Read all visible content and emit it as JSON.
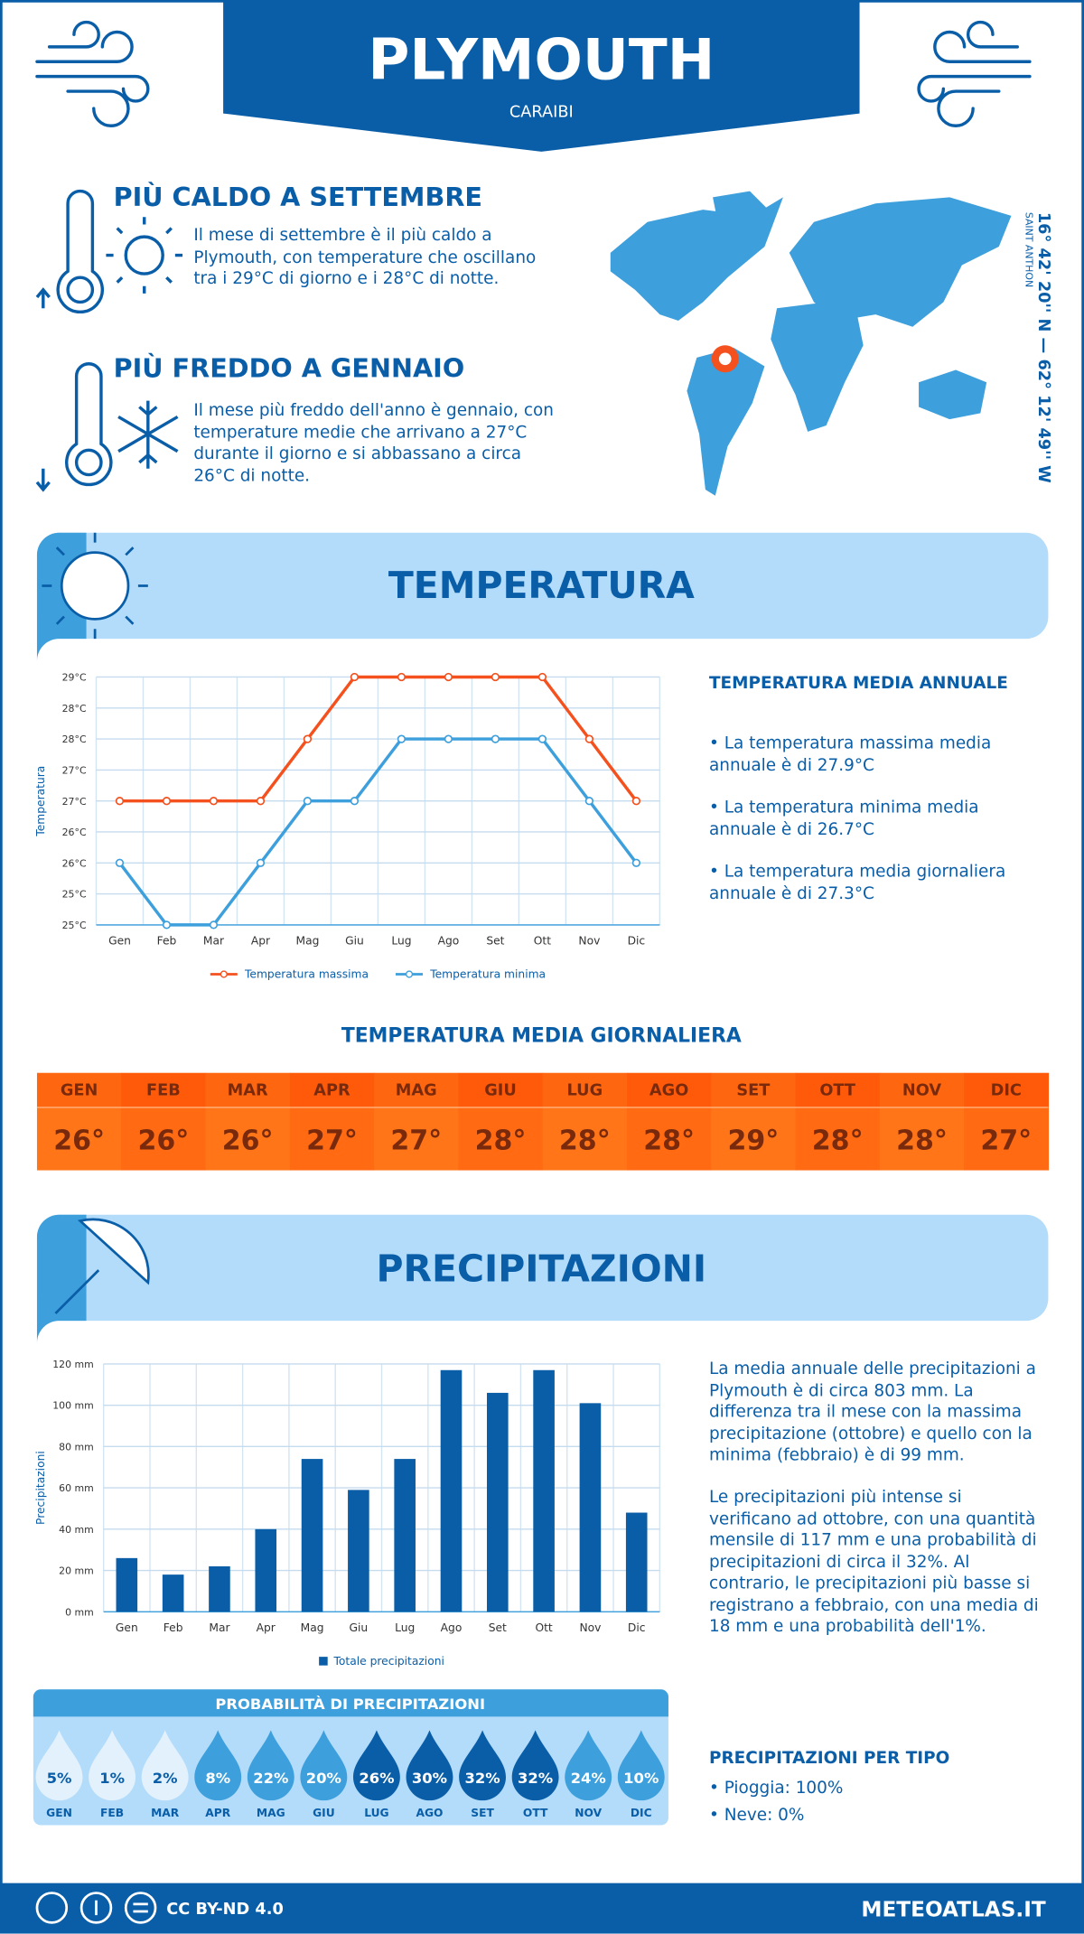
{
  "header": {
    "title": "PLYMOUTH",
    "subtitle": "CARAIBI"
  },
  "highlights": [
    {
      "title": "PIÙ CALDO A SETTEMBRE",
      "text": "Il mese di settembre è il più caldo a Plymouth, con temperature che oscillano tra i 29°C di giorno e i 28°C di notte."
    },
    {
      "title": "PIÙ FREDDO A GENNAIO",
      "text": "Il mese più freddo dell'anno è gennaio, con temperature medie che arrivano a 27°C durante il giorno e si abbassano a circa 26°C di notte."
    }
  ],
  "map": {
    "coordinates": "16° 42' 20'' N — 62° 12' 49'' W",
    "place": "SAINT ANTHON"
  },
  "temperature_section": {
    "title": "TEMPERATURA",
    "annual_title": "TEMPERATURA MEDIA ANNUALE",
    "annual_items": [
      "• La temperatura massima media annuale è di 27.9°C",
      "• La temperatura minima media annuale è di 26.7°C",
      "• La temperatura media giornaliera annuale è di 27.3°C"
    ],
    "daily_title": "TEMPERATURA MEDIA GIORNALIERA",
    "daily": {
      "months": [
        "GEN",
        "FEB",
        "MAR",
        "APR",
        "MAG",
        "GIU",
        "LUG",
        "AGO",
        "SET",
        "OTT",
        "NOV",
        "DIC"
      ],
      "values": [
        "26°",
        "26°",
        "26°",
        "27°",
        "27°",
        "28°",
        "28°",
        "28°",
        "29°",
        "28°",
        "28°",
        "27°"
      ]
    }
  },
  "chart_data": [
    {
      "type": "line",
      "y_label": "Temperatura",
      "categories": [
        "Gen",
        "Feb",
        "Mar",
        "Apr",
        "Mag",
        "Giu",
        "Lug",
        "Ago",
        "Set",
        "Ott",
        "Nov",
        "Dic"
      ],
      "series": [
        {
          "name": "Temperatura massima",
          "color": "#f4511e",
          "values": [
            27,
            27,
            27,
            27,
            28,
            29,
            29,
            29,
            29,
            29,
            28,
            27
          ]
        },
        {
          "name": "Temperatura minima",
          "color": "#3d9fdc",
          "values": [
            26,
            25,
            25,
            26,
            27,
            27,
            28,
            28,
            28,
            28,
            27,
            26
          ]
        }
      ],
      "ylim": [
        25,
        29
      ],
      "yticks": [
        {
          "value": 25,
          "label": "25°C"
        },
        {
          "value": 25.5,
          "label": "25°C"
        },
        {
          "value": 26,
          "label": "26°C"
        },
        {
          "value": 26.5,
          "label": "26°C"
        },
        {
          "value": 27,
          "label": "27°C"
        },
        {
          "value": 27.5,
          "label": "27°C"
        },
        {
          "value": 28,
          "label": "28°C"
        },
        {
          "value": 28.5,
          "label": "28°C"
        },
        {
          "value": 29,
          "label": "29°C"
        }
      ],
      "grid": true
    },
    {
      "type": "bar",
      "y_label": "Precipitazioni",
      "categories": [
        "Gen",
        "Feb",
        "Mar",
        "Apr",
        "Mag",
        "Giu",
        "Lug",
        "Ago",
        "Set",
        "Ott",
        "Nov",
        "Dic"
      ],
      "series": [
        {
          "name": "Totale precipitazioni",
          "color": "#0a5ea8",
          "values": [
            26,
            18,
            22,
            40,
            74,
            59,
            74,
            117,
            106,
            117,
            101,
            48
          ]
        }
      ],
      "ylim": [
        0,
        120
      ],
      "yticks": [
        {
          "value": 0,
          "label": "0 mm"
        },
        {
          "value": 20,
          "label": "20 mm"
        },
        {
          "value": 40,
          "label": "40 mm"
        },
        {
          "value": 60,
          "label": "60 mm"
        },
        {
          "value": 80,
          "label": "80 mm"
        },
        {
          "value": 100,
          "label": "100 mm"
        },
        {
          "value": 120,
          "label": "120 mm"
        }
      ],
      "grid": true
    }
  ],
  "precipitation_section": {
    "title": "PRECIPITAZIONI",
    "paragraphs": [
      "La media annuale delle precipitazioni a Plymouth è di circa 803 mm. La differenza tra il mese con la massima precipitazione (ottobre) e quello con la minima (febbraio) è di 99 mm.",
      "Le precipitazioni più intense si verificano ad ottobre, con una quantità mensile di 117 mm e una probabilità di precipitazioni di circa il 32%. Al contrario, le precipitazioni più basse si registrano a febbraio, con una media di 18 mm e una probabilità dell'1%."
    ],
    "probability_title": "PROBABILITÀ DI PRECIPITAZIONI",
    "probability": {
      "months": [
        "GEN",
        "FEB",
        "MAR",
        "APR",
        "MAG",
        "GIU",
        "LUG",
        "AGO",
        "SET",
        "OTT",
        "NOV",
        "DIC"
      ],
      "values": [
        "5%",
        "1%",
        "2%",
        "8%",
        "22%",
        "20%",
        "26%",
        "30%",
        "32%",
        "32%",
        "24%",
        "10%"
      ]
    },
    "type_title": "PRECIPITAZIONI PER TIPO",
    "types": [
      "• Pioggia: 100%",
      "• Neve: 0%"
    ]
  },
  "footer": {
    "license": "CC BY-ND 4.0",
    "site": "METEOATLAS.IT"
  }
}
